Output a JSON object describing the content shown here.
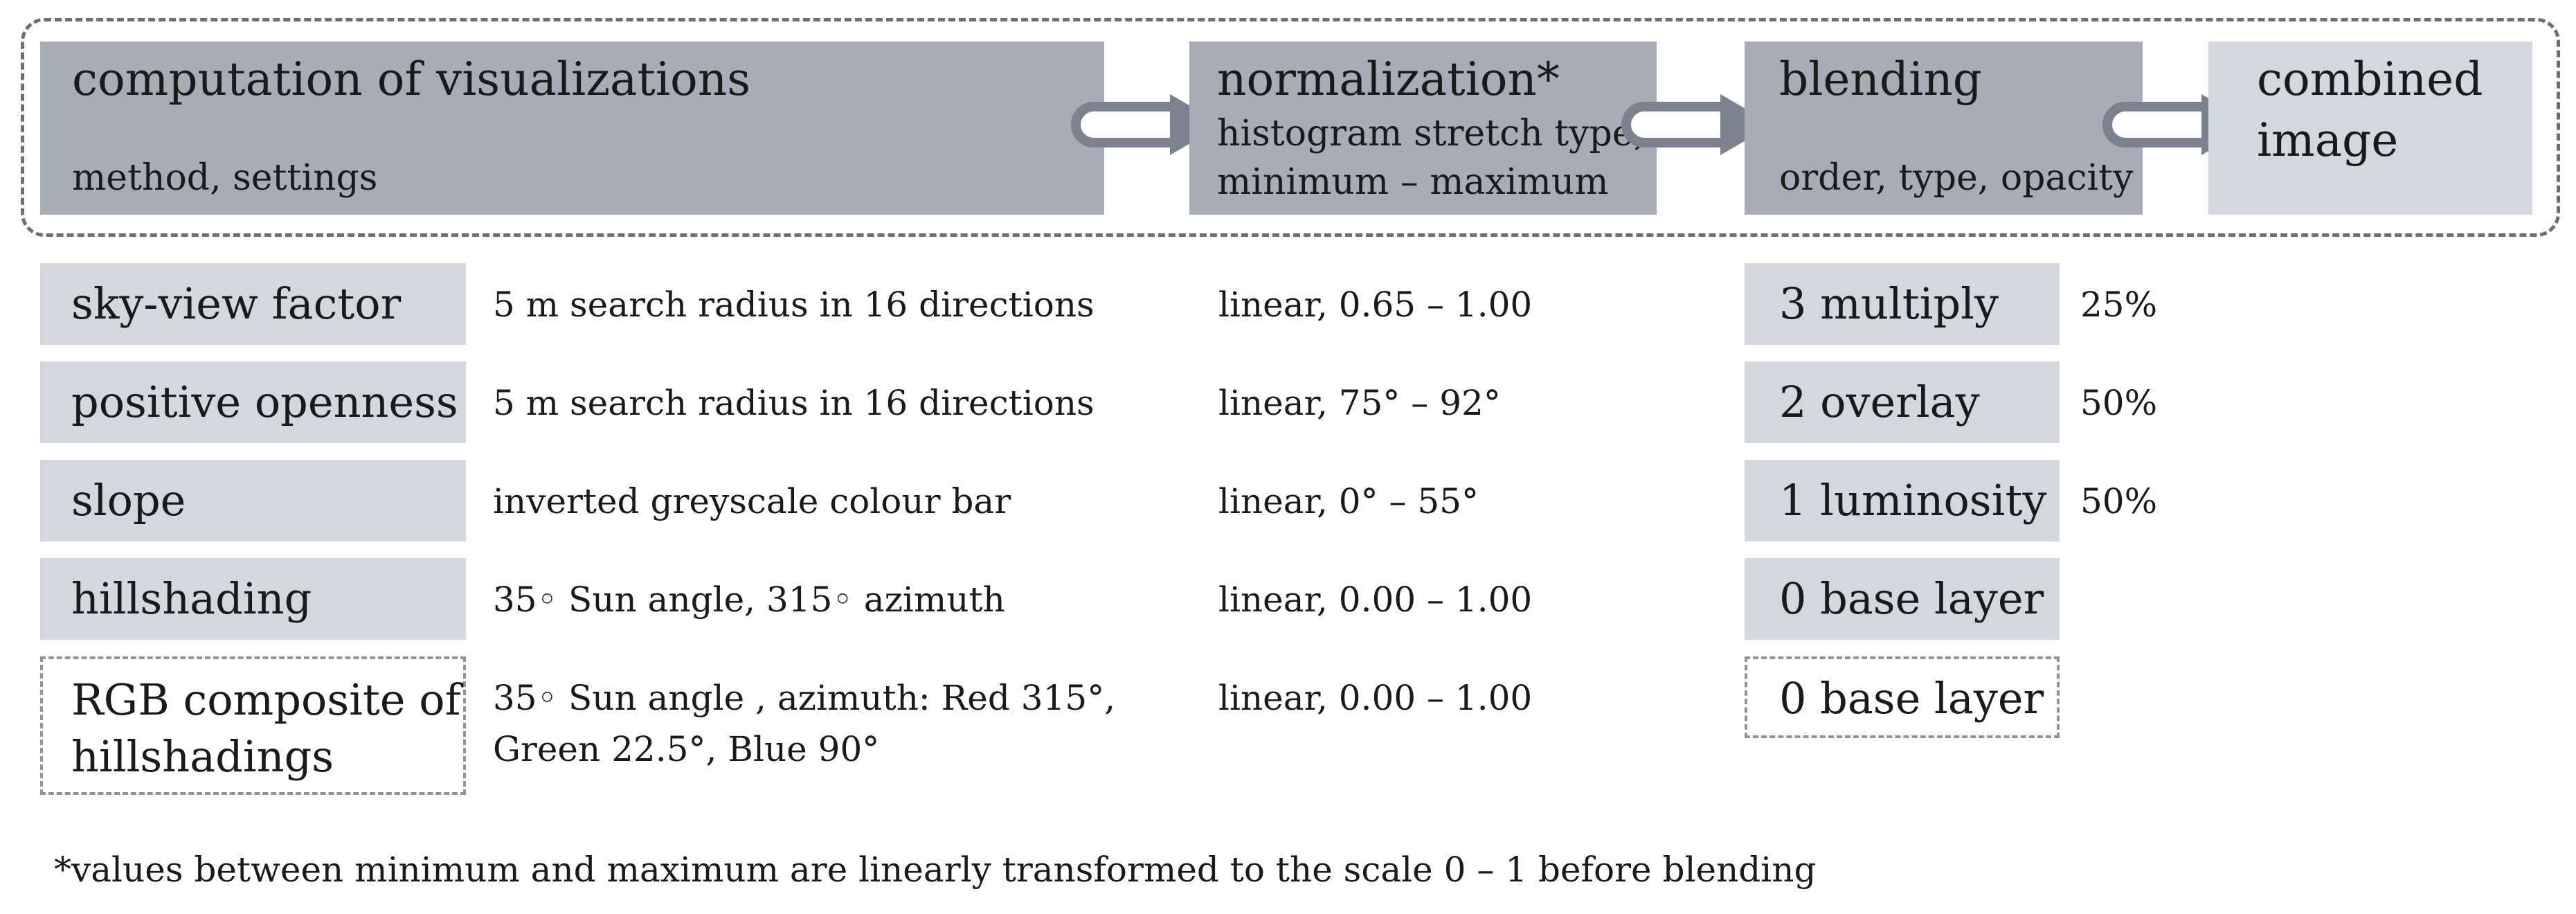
{
  "pipeline": {
    "steps": [
      {
        "title": "computation of visualizations",
        "subtitle": "method, settings"
      },
      {
        "title": "normalization*",
        "subtitle_line1": "histogram stretch type,",
        "subtitle_line2": "minimum – maximum"
      },
      {
        "title": "blending",
        "subtitle": "order, type, opacity"
      },
      {
        "title_line1": "combined",
        "title_line2": "image"
      }
    ]
  },
  "rows": [
    {
      "name": "sky-view factor",
      "settings": "5 m search radius in 16 directions",
      "normalization": "linear, 0.65 – 1.00",
      "blend": "3 multiply",
      "opacity": "25%"
    },
    {
      "name": "positive openness",
      "settings": "5 m search radius in 16 directions",
      "normalization": "linear, 75° – 92°",
      "blend": "2 overlay",
      "opacity": "50%"
    },
    {
      "name": "slope",
      "settings": "inverted greyscale colour bar",
      "normalization": "linear, 0° – 55°",
      "blend": "1 luminosity",
      "opacity": "50%"
    },
    {
      "name": "hillshading",
      "settings": "35◦ Sun angle, 315◦ azimuth",
      "normalization": "linear, 0.00 – 1.00",
      "blend": "0 base layer",
      "opacity": ""
    },
    {
      "name_line1": "RGB composite of",
      "name_line2": "hillshadings",
      "settings_line1": "35◦ Sun angle , azimuth: Red 315°,",
      "settings_line2": "Green 22.5°, Blue 90°",
      "normalization": "linear, 0.00 – 1.00",
      "blend": "0 base layer",
      "opacity": ""
    }
  ],
  "footnote": "*values between minimum and maximum are linearly transformed to the scale 0 – 1 before blending",
  "colors": {
    "step_dark": "#a7acb7",
    "step_light": "#d4d7de",
    "arrow": "#7c8190",
    "frame": "#6b6f78"
  }
}
